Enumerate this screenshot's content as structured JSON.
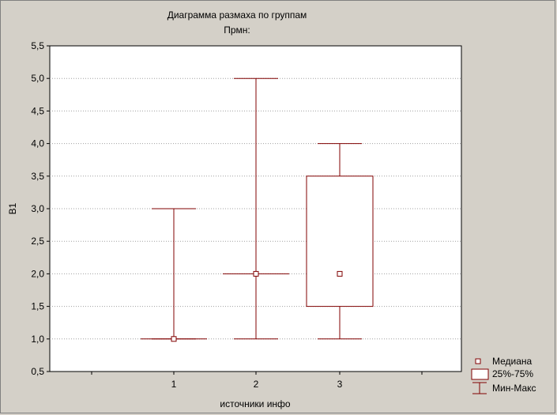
{
  "chart_data": {
    "type": "box",
    "title": "Диаграмма размаха по группам",
    "subtitle": "Прмн:",
    "xlabel": "источники инфо",
    "ylabel": "B1",
    "ylim": [
      0.5,
      5.5
    ],
    "yticks": [
      "0,5",
      "1,0",
      "1,5",
      "2,0",
      "2,5",
      "3,0",
      "3,5",
      "4,0",
      "4,5",
      "5,0",
      "5,5"
    ],
    "ytick_values": [
      0.5,
      1.0,
      1.5,
      2.0,
      2.5,
      3.0,
      3.5,
      4.0,
      4.5,
      5.0,
      5.5
    ],
    "categories": [
      "1",
      "2",
      "3"
    ],
    "groups": [
      {
        "label": "1",
        "median": 1.0,
        "q1": 1.0,
        "q3": 1.0,
        "min": 1.0,
        "max": 3.0
      },
      {
        "label": "2",
        "median": 2.0,
        "q1": 2.0,
        "q3": 2.0,
        "min": 1.0,
        "max": 5.0
      },
      {
        "label": "3",
        "median": 2.0,
        "q1": 1.5,
        "q3": 3.5,
        "min": 1.0,
        "max": 4.0
      }
    ],
    "grid": true,
    "legend_position": "bottom-right",
    "legend": [
      "Медиана",
      "25%-75%",
      "Мин-Макс"
    ],
    "colors": {
      "series": "#800000",
      "background": "#d4d0c8",
      "plot": "#ffffff",
      "grid": "#a0a0a0"
    }
  }
}
